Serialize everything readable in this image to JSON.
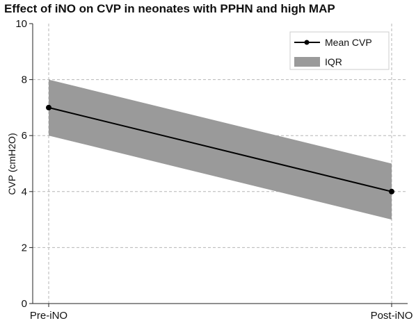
{
  "chart_data": {
    "type": "line",
    "title": "Effect of iNO on CVP in neonates with PPHN and high MAP",
    "xlabel": "",
    "ylabel": "CVP (cmH2O)",
    "categories": [
      "Pre-iNO",
      "Post-iNO"
    ],
    "ylim": [
      0,
      10
    ],
    "yticks": [
      0,
      2,
      4,
      6,
      8,
      10
    ],
    "grid": true,
    "legend_position": "top-right",
    "series": [
      {
        "name": "Mean CVP",
        "values": [
          7,
          4
        ],
        "color": "#000000"
      }
    ],
    "band": {
      "name": "IQR",
      "lower": [
        6,
        3
      ],
      "upper": [
        8,
        5
      ],
      "color": "#9a9a9a"
    }
  }
}
